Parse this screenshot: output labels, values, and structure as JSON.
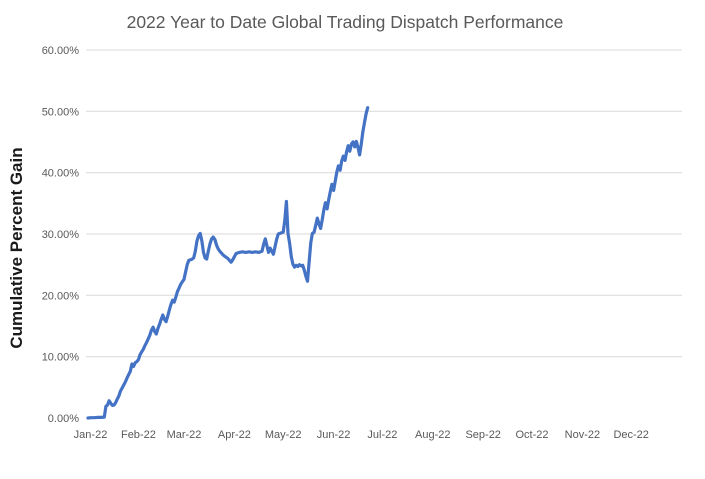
{
  "colors": {
    "accent": "#4472C4",
    "grid": "#D9D9D9",
    "axis_text": "#595959",
    "title_text": "#595959",
    "ylabel_text": "#1a1a1a",
    "page_bg": "#ffffff"
  },
  "chart_data": {
    "type": "line",
    "title": "2022 Year to Date Global Trading Dispatch Performance",
    "xlabel": "",
    "ylabel": "Cumulative Percent Gain",
    "legend": "none",
    "grid": "horizontal-only",
    "ylim": [
      0,
      60
    ],
    "y_tick_format": "percent-2dp",
    "y_tick_labels": [
      "0.00%",
      "10.00%",
      "20.00%",
      "30.00%",
      "40.00%",
      "50.00%",
      "60.00%"
    ],
    "x_tick_labels": [
      "Jan-22",
      "Feb-22",
      "Mar-22",
      "Apr-22",
      "May-22",
      "Jun-22",
      "Jul-22",
      "Aug-22",
      "Sep-22",
      "Oct-22",
      "Nov-22",
      "Dec-22"
    ],
    "x_axis_unit": "days from Jan 1 2022",
    "x_range_days": [
      0,
      365
    ],
    "data_ends": "late June 2022 at ~50.6%",
    "series": [
      {
        "name": "Cumulative Percent Gain",
        "color": "#4472C4",
        "points": [
          [
            0,
            0.0
          ],
          [
            2,
            0.05
          ],
          [
            4,
            0.05
          ],
          [
            6,
            0.1
          ],
          [
            8,
            0.1
          ],
          [
            10,
            0.15
          ],
          [
            11,
            1.9
          ],
          [
            12,
            2.1
          ],
          [
            13,
            2.8
          ],
          [
            14,
            2.4
          ],
          [
            15,
            2.05
          ],
          [
            16,
            2.1
          ],
          [
            17,
            2.5
          ],
          [
            18,
            3.1
          ],
          [
            19,
            3.6
          ],
          [
            20,
            4.4
          ],
          [
            21,
            4.9
          ],
          [
            22,
            5.4
          ],
          [
            23,
            5.9
          ],
          [
            24,
            6.5
          ],
          [
            25,
            7.1
          ],
          [
            26,
            7.6
          ],
          [
            27,
            8.8
          ],
          [
            28,
            8.4
          ],
          [
            29,
            9.0
          ],
          [
            30,
            9.2
          ],
          [
            31,
            9.5
          ],
          [
            32,
            10.3
          ],
          [
            33,
            10.8
          ],
          [
            34,
            11.2
          ],
          [
            35,
            11.8
          ],
          [
            36,
            12.3
          ],
          [
            37,
            12.9
          ],
          [
            38,
            13.5
          ],
          [
            39,
            14.3
          ],
          [
            40,
            14.8
          ],
          [
            41,
            14.1
          ],
          [
            42,
            13.7
          ],
          [
            43,
            14.6
          ],
          [
            44,
            15.3
          ],
          [
            45,
            16.1
          ],
          [
            46,
            16.8
          ],
          [
            47,
            16.1
          ],
          [
            48,
            15.7
          ],
          [
            49,
            16.6
          ],
          [
            50,
            17.6
          ],
          [
            51,
            18.5
          ],
          [
            52,
            19.2
          ],
          [
            53,
            18.9
          ],
          [
            54,
            19.7
          ],
          [
            55,
            20.6
          ],
          [
            56,
            21.2
          ],
          [
            57,
            21.8
          ],
          [
            58,
            22.2
          ],
          [
            59,
            22.6
          ],
          [
            60,
            23.8
          ],
          [
            61,
            25.0
          ],
          [
            62,
            25.7
          ],
          [
            63,
            25.8
          ],
          [
            64,
            25.9
          ],
          [
            65,
            26.1
          ],
          [
            66,
            27.2
          ],
          [
            67,
            28.9
          ],
          [
            68,
            29.7
          ],
          [
            69,
            30.1
          ],
          [
            70,
            28.9
          ],
          [
            71,
            27.0
          ],
          [
            72,
            26.1
          ],
          [
            73,
            25.9
          ],
          [
            74,
            27.2
          ],
          [
            75,
            28.4
          ],
          [
            76,
            29.2
          ],
          [
            77,
            29.5
          ],
          [
            78,
            29.1
          ],
          [
            79,
            28.2
          ],
          [
            80,
            27.6
          ],
          [
            81,
            27.2
          ],
          [
            82,
            26.9
          ],
          [
            83,
            26.6
          ],
          [
            84,
            26.4
          ],
          [
            85,
            26.2
          ],
          [
            86,
            26.0
          ],
          [
            87,
            25.7
          ],
          [
            88,
            25.4
          ],
          [
            89,
            25.8
          ],
          [
            90,
            26.3
          ],
          [
            91,
            26.8
          ],
          [
            93,
            27.0
          ],
          [
            95,
            27.1
          ],
          [
            97,
            27.0
          ],
          [
            99,
            27.1
          ],
          [
            101,
            27.0
          ],
          [
            103,
            27.1
          ],
          [
            105,
            27.0
          ],
          [
            107,
            27.2
          ],
          [
            108,
            28.3
          ],
          [
            109,
            29.2
          ],
          [
            110,
            28.1
          ],
          [
            111,
            27.0
          ],
          [
            112,
            27.7
          ],
          [
            113,
            27.2
          ],
          [
            114,
            26.7
          ],
          [
            115,
            27.9
          ],
          [
            116,
            29.1
          ],
          [
            117,
            30.0
          ],
          [
            118,
            30.1
          ],
          [
            119,
            30.2
          ],
          [
            120,
            30.3
          ],
          [
            121,
            32.2
          ],
          [
            122,
            35.3
          ],
          [
            123,
            30.1
          ],
          [
            124,
            28.4
          ],
          [
            125,
            26.3
          ],
          [
            126,
            25.1
          ],
          [
            127,
            24.6
          ],
          [
            128,
            24.9
          ],
          [
            129,
            24.7
          ],
          [
            130,
            25.0
          ],
          [
            131,
            24.8
          ],
          [
            132,
            24.9
          ],
          [
            133,
            24.1
          ],
          [
            134,
            23.1
          ],
          [
            135,
            22.3
          ],
          [
            136,
            25.6
          ],
          [
            137,
            28.6
          ],
          [
            138,
            30.1
          ],
          [
            139,
            30.3
          ],
          [
            140,
            31.4
          ],
          [
            141,
            32.6
          ],
          [
            142,
            31.7
          ],
          [
            143,
            30.9
          ],
          [
            144,
            32.3
          ],
          [
            145,
            33.9
          ],
          [
            146,
            35.1
          ],
          [
            147,
            34.1
          ],
          [
            148,
            35.6
          ],
          [
            149,
            36.9
          ],
          [
            150,
            38.1
          ],
          [
            151,
            37.1
          ],
          [
            152,
            38.6
          ],
          [
            153,
            40.1
          ],
          [
            154,
            41.1
          ],
          [
            155,
            40.4
          ],
          [
            156,
            41.9
          ],
          [
            157,
            42.7
          ],
          [
            158,
            42.0
          ],
          [
            159,
            43.4
          ],
          [
            160,
            44.4
          ],
          [
            161,
            43.5
          ],
          [
            162,
            44.7
          ],
          [
            163,
            45.0
          ],
          [
            164,
            44.2
          ],
          [
            165,
            45.1
          ],
          [
            166,
            44.1
          ],
          [
            167,
            42.9
          ],
          [
            168,
            44.6
          ],
          [
            169,
            46.6
          ],
          [
            170,
            48.2
          ],
          [
            171,
            49.6
          ],
          [
            172,
            50.6
          ]
        ]
      }
    ]
  }
}
